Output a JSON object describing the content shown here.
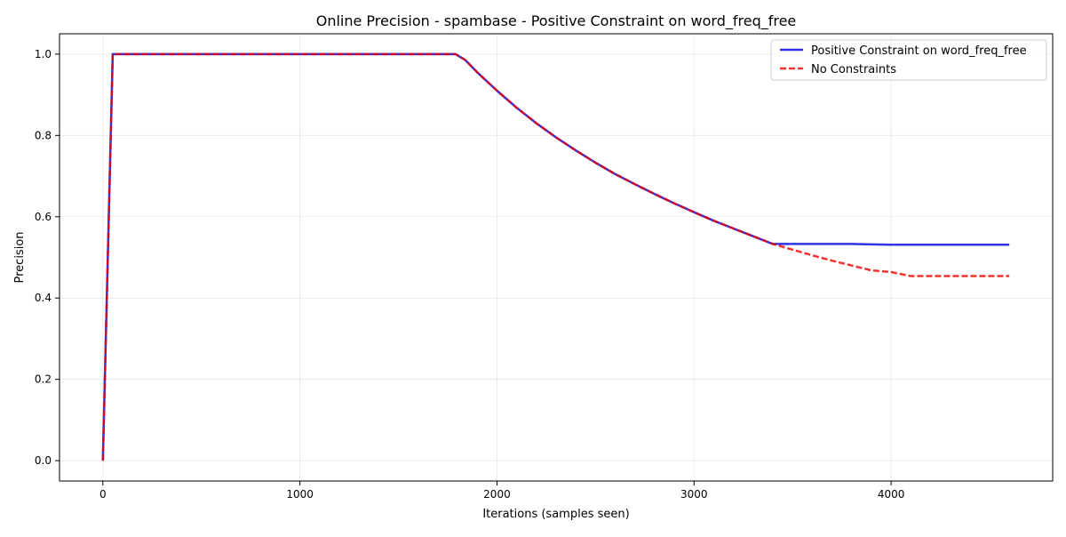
{
  "chart_data": {
    "type": "line",
    "title": "Online Precision - spambase - Positive Constraint on word_freq_free",
    "xlabel": "Iterations (samples seen)",
    "ylabel": "Precision",
    "xlim": [
      -220,
      4820
    ],
    "ylim": [
      -0.05,
      1.05
    ],
    "x_ticks": [
      0,
      1000,
      2000,
      3000,
      4000
    ],
    "y_ticks": [
      0.0,
      0.2,
      0.4,
      0.6,
      0.8,
      1.0
    ],
    "x_tick_labels": [
      "0",
      "1000",
      "2000",
      "3000",
      "4000"
    ],
    "y_tick_labels": [
      "0.0",
      "0.2",
      "0.4",
      "0.6",
      "0.8",
      "1.0"
    ],
    "grid": true,
    "legend_position": "top-right",
    "series": [
      {
        "name": "Positive Constraint on word_freq_free",
        "color": "#0000dd",
        "style": "solid",
        "x": [
          0,
          50,
          100,
          200,
          400,
          600,
          800,
          1000,
          1200,
          1400,
          1600,
          1790,
          1840,
          1900,
          2000,
          2100,
          2200,
          2300,
          2400,
          2500,
          2600,
          2700,
          2800,
          2900,
          3000,
          3100,
          3200,
          3300,
          3400,
          3500,
          3600,
          3700,
          3800,
          3900,
          4000,
          4100,
          4200,
          4300,
          4400,
          4500,
          4600
        ],
        "y": [
          0.0,
          1.0,
          1.0,
          1.0,
          1.0,
          1.0,
          1.0,
          1.0,
          1.0,
          1.0,
          1.0,
          1.0,
          0.985,
          0.955,
          0.91,
          0.868,
          0.83,
          0.795,
          0.763,
          0.733,
          0.705,
          0.68,
          0.656,
          0.633,
          0.611,
          0.59,
          0.571,
          0.552,
          0.533,
          0.533,
          0.533,
          0.533,
          0.533,
          0.532,
          0.531,
          0.531,
          0.531,
          0.531,
          0.531,
          0.531,
          0.531
        ]
      },
      {
        "name": "No Constraints",
        "color": "#ee0000",
        "style": "dashed",
        "x": [
          0,
          50,
          100,
          200,
          400,
          600,
          800,
          1000,
          1200,
          1400,
          1600,
          1790,
          1840,
          1900,
          2000,
          2100,
          2200,
          2300,
          2400,
          2500,
          2600,
          2700,
          2800,
          2900,
          3000,
          3100,
          3200,
          3300,
          3400,
          3500,
          3600,
          3700,
          3800,
          3900,
          4000,
          4100,
          4200,
          4300,
          4400,
          4500,
          4600
        ],
        "y": [
          0.0,
          1.0,
          1.0,
          1.0,
          1.0,
          1.0,
          1.0,
          1.0,
          1.0,
          1.0,
          1.0,
          1.0,
          0.985,
          0.955,
          0.91,
          0.868,
          0.83,
          0.795,
          0.763,
          0.733,
          0.705,
          0.68,
          0.656,
          0.633,
          0.611,
          0.59,
          0.571,
          0.552,
          0.533,
          0.519,
          0.505,
          0.492,
          0.48,
          0.468,
          0.464,
          0.454,
          0.454,
          0.454,
          0.454,
          0.454,
          0.454
        ]
      }
    ]
  }
}
